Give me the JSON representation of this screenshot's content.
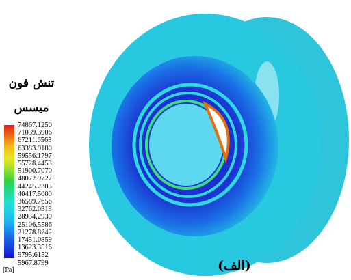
{
  "title_lines": [
    "تنش فون",
    "میسس"
  ],
  "legend": {
    "labels": [
      "74867.1250",
      "71039.3906",
      "67211.6563",
      "63383.9180",
      "59556.1797",
      "55728.4453",
      "51900.7070",
      "48072.9727",
      "44245.2383",
      "40417.5000",
      "36589.7656",
      "32762.0313",
      "28934.2930",
      "25106.5586",
      "21278.8242",
      "17451.0859",
      "13623.3516",
      "9795.6152",
      "5967.8799"
    ],
    "unit": "[Pa]"
  },
  "caption": "(الف)"
}
